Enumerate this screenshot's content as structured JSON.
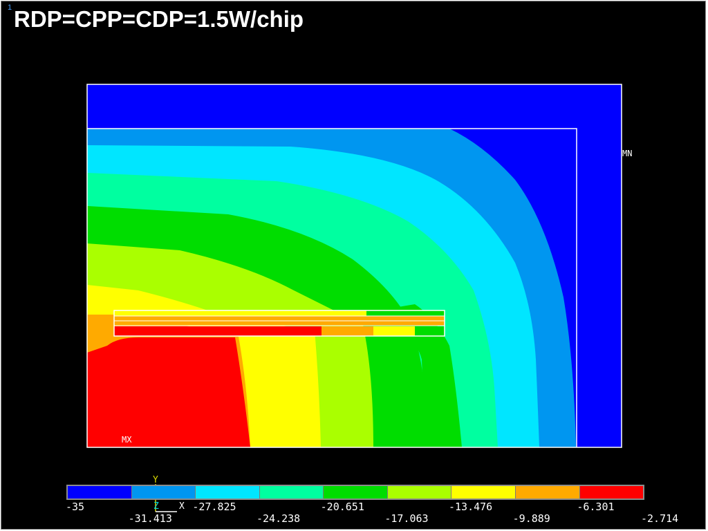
{
  "window_number": "1",
  "title": "RDP=CPP=CDP=1.5W/chip",
  "markers": {
    "max": "MX",
    "min": "MN"
  },
  "axes": {
    "y": "Y",
    "z": "Z",
    "x": "X"
  },
  "legend": {
    "colors": [
      "#0000ff",
      "#0096f0",
      "#00e6ff",
      "#00ffa0",
      "#00dd00",
      "#aaff00",
      "#ffff00",
      "#ffaa00",
      "#ff0000"
    ],
    "top_labels": [
      "-35",
      "-27.825",
      "-20.651",
      "-13.476",
      "-6.301"
    ],
    "bottom_labels": [
      "-31.413",
      "-24.238",
      "-17.063",
      "-9.889",
      "-2.714"
    ]
  }
}
